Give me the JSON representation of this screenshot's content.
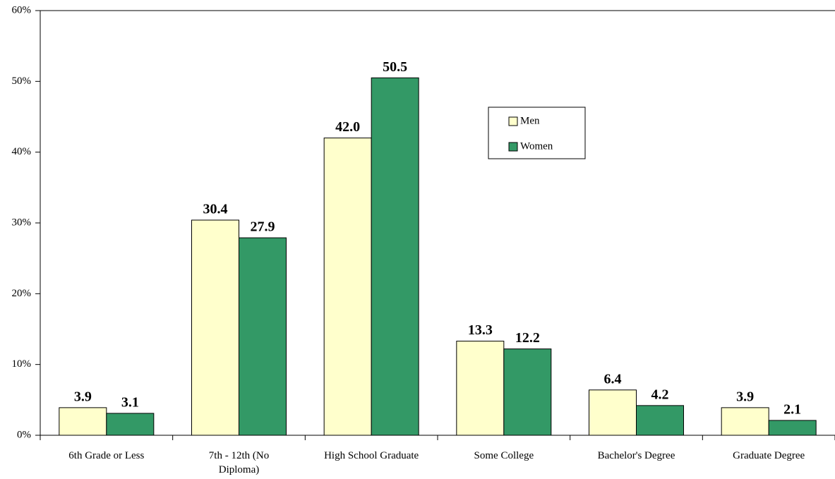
{
  "chart_data": {
    "type": "bar",
    "categories": [
      "6th Grade or Less",
      "7th - 12th (No Diploma)",
      "High School Graduate",
      "Some College",
      "Bachelor's Degree",
      "Graduate Degree"
    ],
    "series": [
      {
        "name": "Men",
        "color": "#ffffcc",
        "values": [
          3.9,
          30.4,
          42.0,
          13.3,
          6.4,
          3.9
        ],
        "value_labels": [
          "3.9",
          "30.4",
          "42.0",
          "13.3",
          "6.4",
          "3.9"
        ]
      },
      {
        "name": "Women",
        "color": "#339966",
        "values": [
          3.1,
          27.9,
          50.5,
          12.2,
          4.2,
          2.1
        ],
        "value_labels": [
          "3.1",
          "27.9",
          "50.5",
          "12.2",
          "4.2",
          "2.1"
        ]
      }
    ],
    "ylim": [
      0,
      60
    ],
    "yticks": [
      {
        "value": 0,
        "label": "0%"
      },
      {
        "value": 10,
        "label": "10%"
      },
      {
        "value": 20,
        "label": "20%"
      },
      {
        "value": 30,
        "label": "30%"
      },
      {
        "value": 40,
        "label": "40%"
      },
      {
        "value": 50,
        "label": "50%"
      },
      {
        "value": 60,
        "label": "60%"
      }
    ],
    "grid": false
  }
}
